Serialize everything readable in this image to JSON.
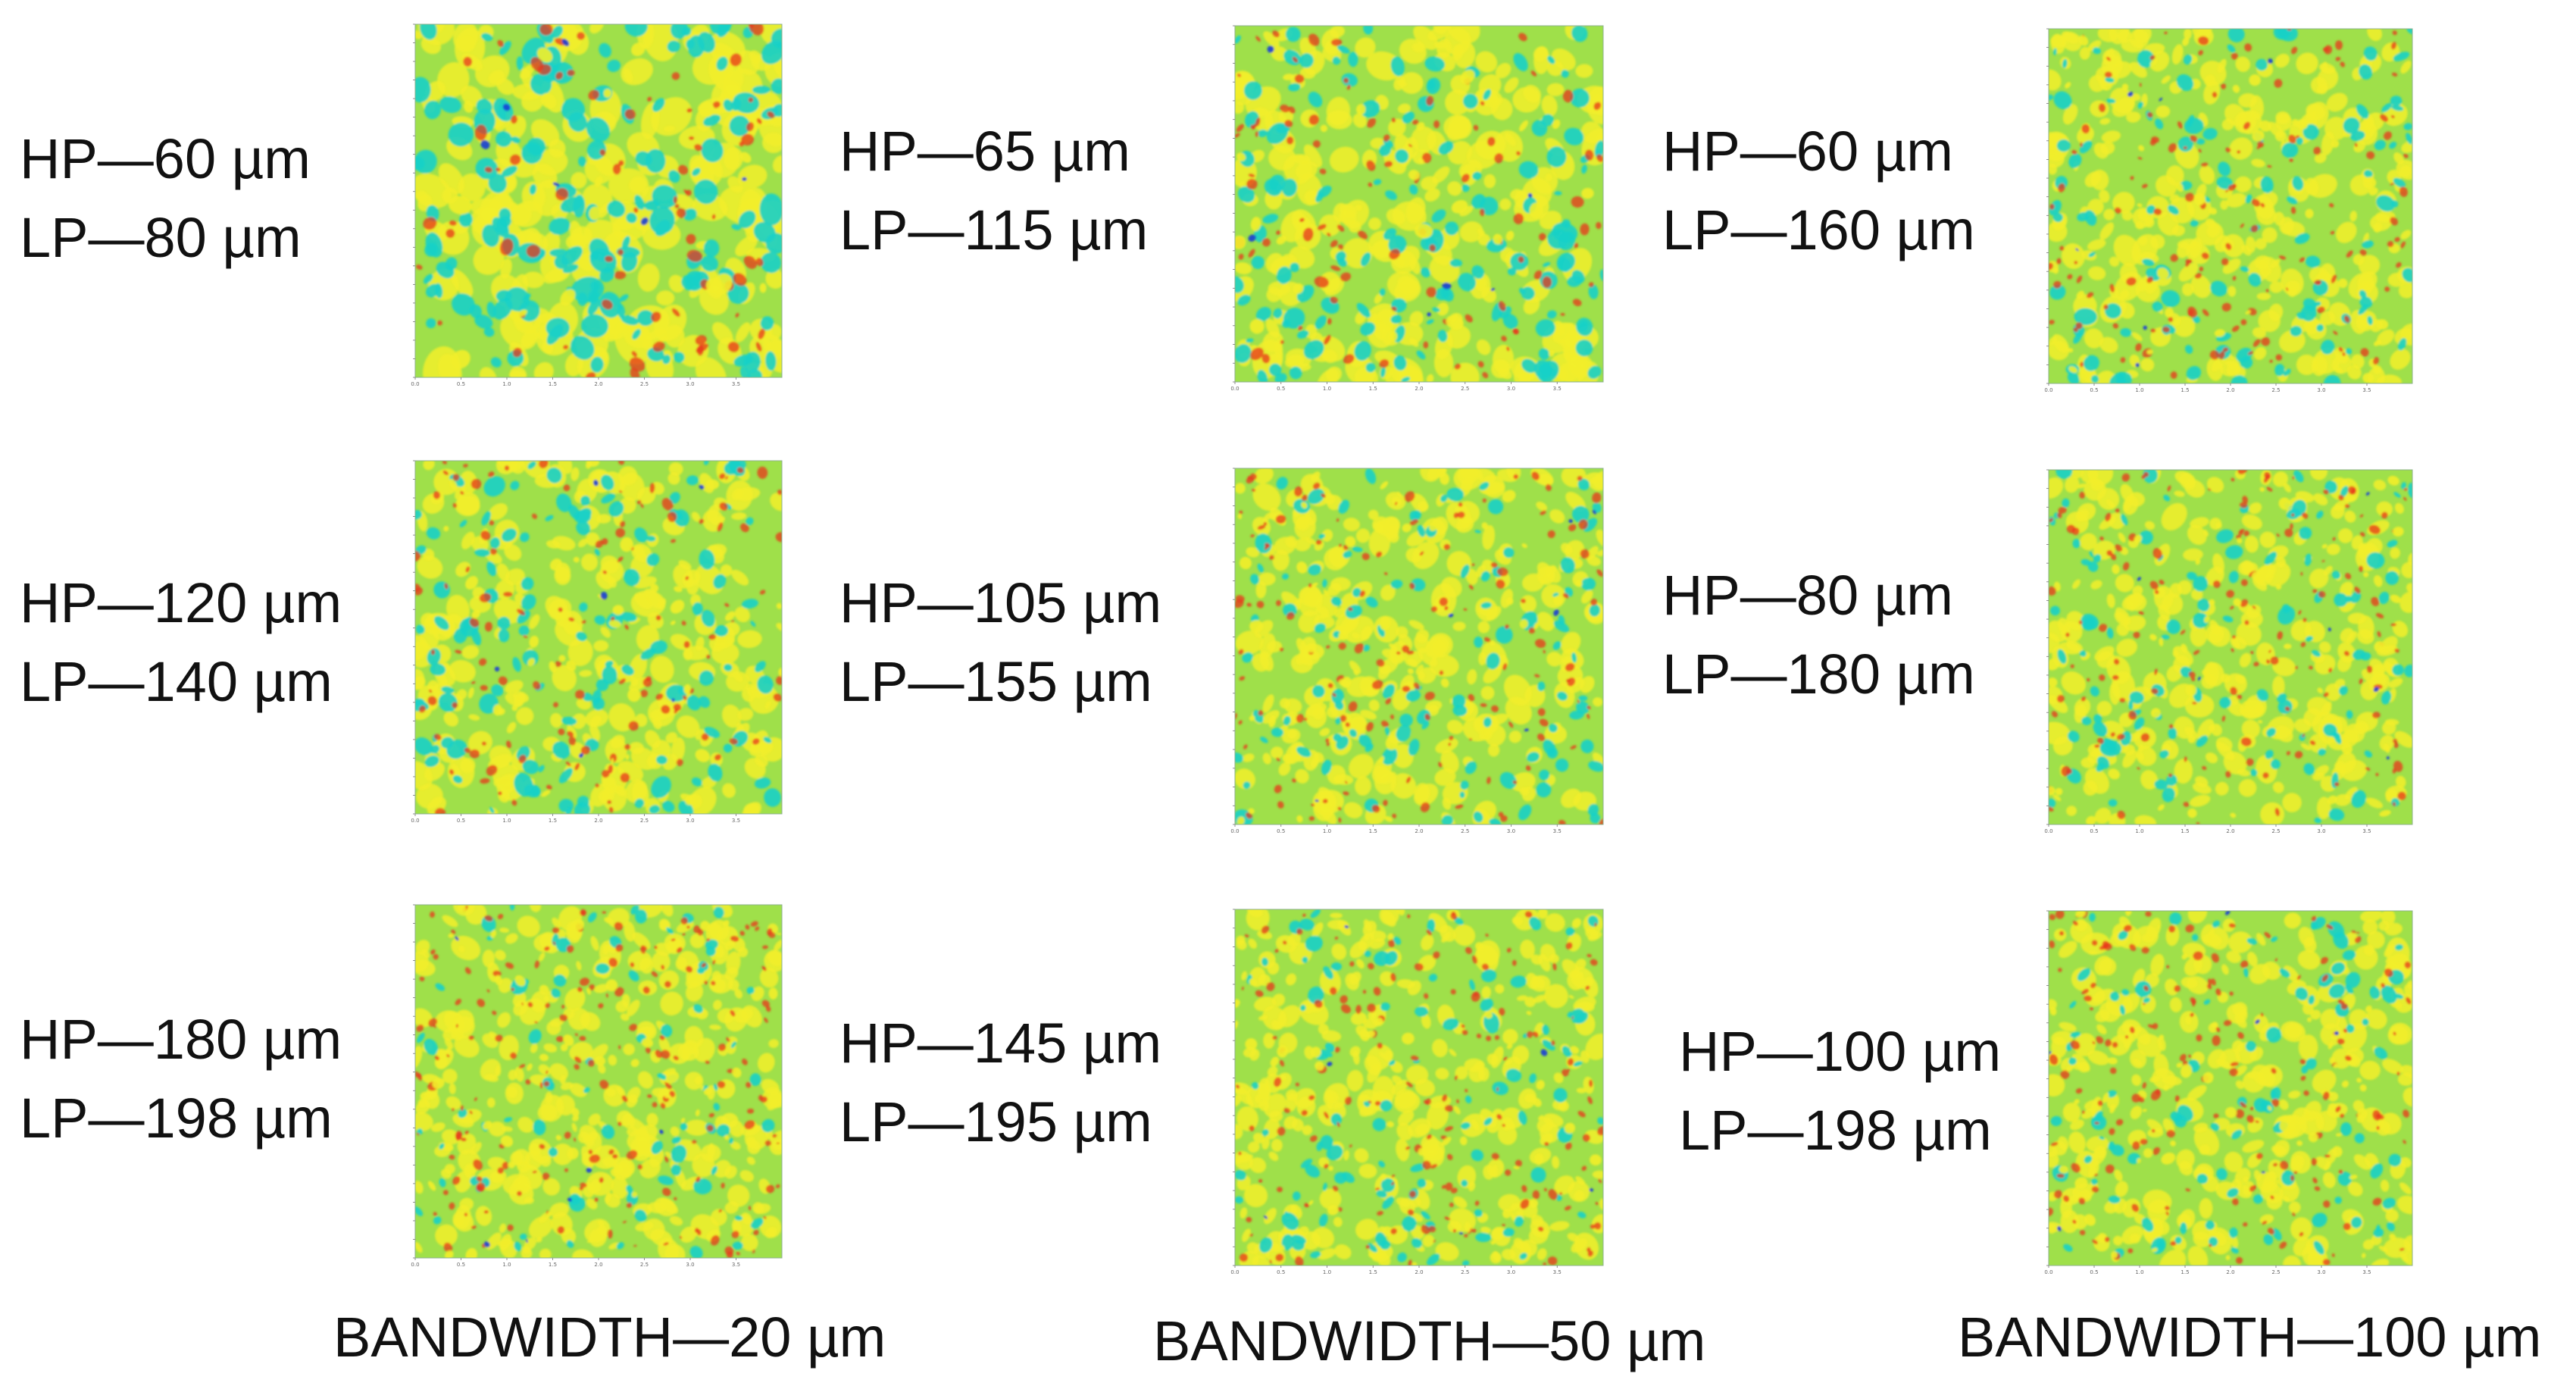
{
  "columns": [
    {
      "footer": "BANDWIDTH—20 µm",
      "rows": [
        {
          "hp": "HP—60 µm",
          "lp": "LP—80 µm"
        },
        {
          "hp": "HP—120 µm",
          "lp": "LP—140 µm"
        },
        {
          "hp": "HP—180 µm",
          "lp": "LP—198 µm"
        }
      ]
    },
    {
      "footer": "BANDWIDTH—50 µm",
      "rows": [
        {
          "hp": "HP—65 µm",
          "lp": "LP—115 µm"
        },
        {
          "hp": "HP—105 µm",
          "lp": "LP—155 µm"
        },
        {
          "hp": "HP—145 µm",
          "lp": "LP—195 µm"
        }
      ]
    },
    {
      "footer": "BANDWIDTH—100 µm",
      "rows": [
        {
          "hp": "HP—60 µm",
          "lp": "LP—160 µm"
        },
        {
          "hp": "HP—80 µm",
          "lp": "LP—180 µm"
        },
        {
          "hp": "HP—100 µm",
          "lp": "LP—198 µm"
        }
      ]
    }
  ],
  "colormap": {
    "low": "#1a3fd6",
    "low_mid": "#18d0c8",
    "mid": "#9fe04a",
    "high_mid": "#f2ee2a",
    "high": "#e8361c"
  }
}
